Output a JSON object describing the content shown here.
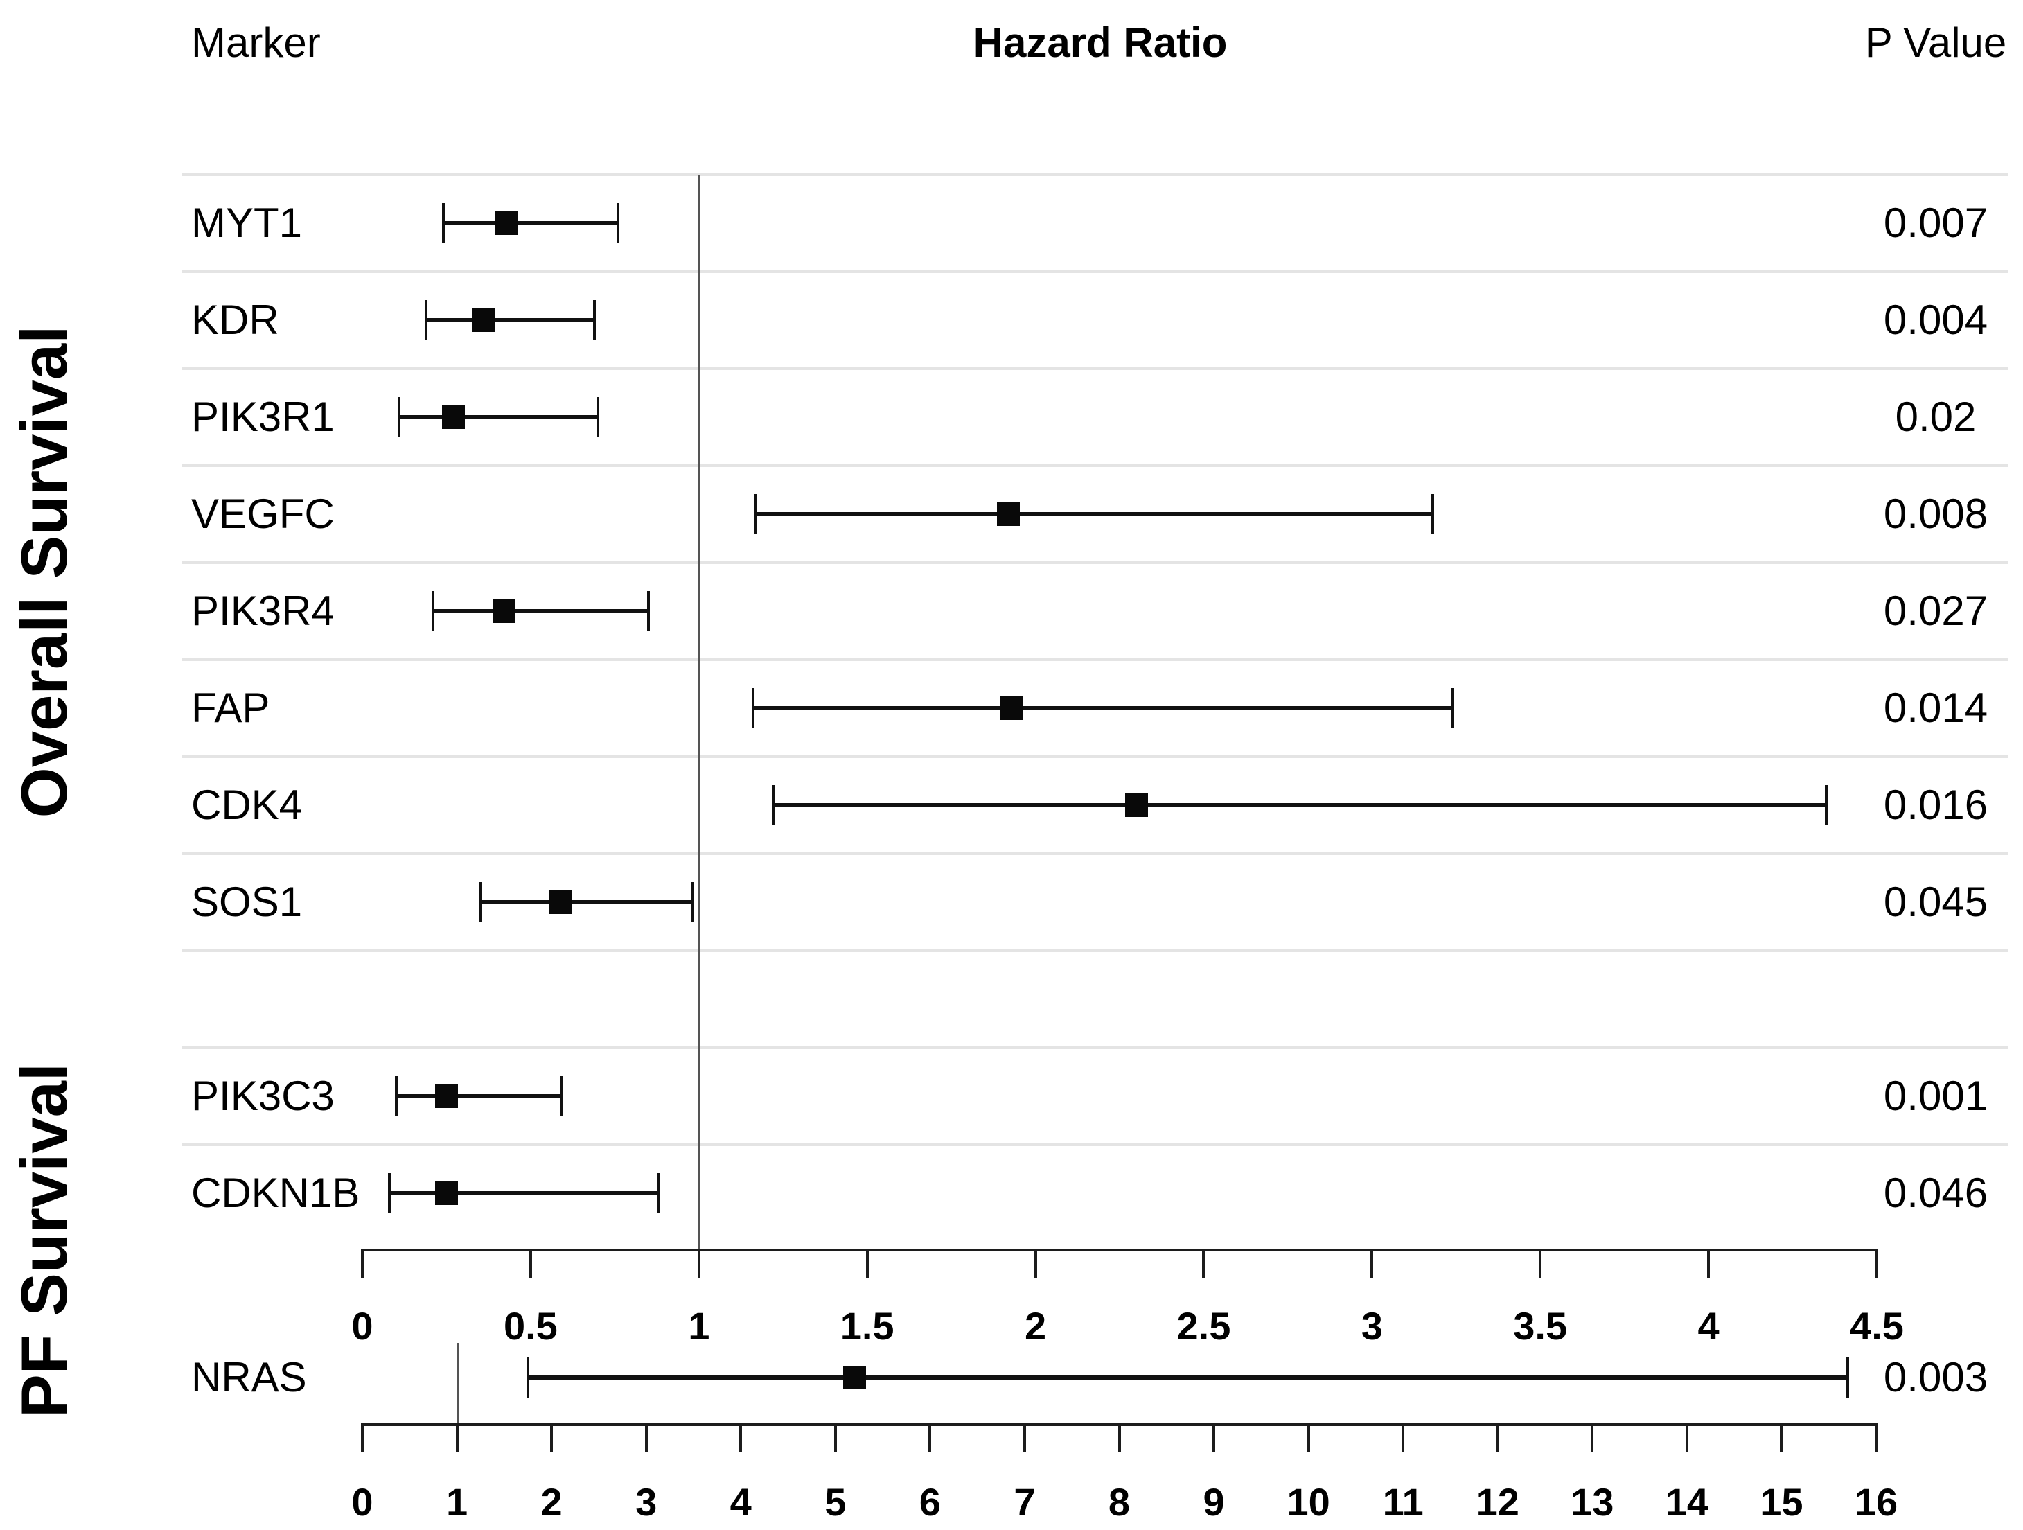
{
  "header": {
    "marker": "Marker",
    "hazard_ratio": "Hazard Ratio",
    "p_value": "P Value"
  },
  "colors": {
    "background": "#ffffff",
    "text": "#000000",
    "separator": "#e4e4e4",
    "axis": "#1c1c1c",
    "reference_line": "#545454",
    "error_bar": "#111111",
    "point_marker": "#090909"
  },
  "chart_data": {
    "type": "forest",
    "title": "Hazard Ratio",
    "legend": "none",
    "grid": "row separators only",
    "reference_line_value": 1,
    "groups": [
      {
        "label": "Overall Survival",
        "markers": [
          "MYT1",
          "KDR",
          "PIK3R1",
          "VEGFC",
          "PIK3R4",
          "FAP",
          "CDK4",
          "SOS1"
        ]
      },
      {
        "label": "PF Survival",
        "markers": [
          "PIK3C3",
          "CDKN1B",
          "NRAS"
        ]
      }
    ],
    "upper_axis": {
      "range": [
        0,
        4.5
      ],
      "ticks": [
        0,
        0.5,
        1,
        1.5,
        2,
        2.5,
        3,
        3.5,
        4,
        4.5
      ],
      "applies_to": "all rows except NRAS"
    },
    "lower_axis": {
      "range": [
        0,
        16
      ],
      "ticks": [
        0,
        1,
        2,
        3,
        4,
        5,
        6,
        7,
        8,
        9,
        10,
        11,
        12,
        13,
        14,
        15,
        16
      ],
      "applies_to": "NRAS"
    },
    "rows": [
      {
        "marker": "MYT1",
        "group": "Overall Survival",
        "axis": "upper",
        "hr": 0.43,
        "ci": [
          0.24,
          0.76
        ],
        "p_value": "0.007"
      },
      {
        "marker": "KDR",
        "group": "Overall Survival",
        "axis": "upper",
        "hr": 0.36,
        "ci": [
          0.19,
          0.69
        ],
        "p_value": "0.004"
      },
      {
        "marker": "PIK3R1",
        "group": "Overall Survival",
        "axis": "upper",
        "hr": 0.27,
        "ci": [
          0.11,
          0.7
        ],
        "p_value": "0.02"
      },
      {
        "marker": "VEGFC",
        "group": "Overall Survival",
        "axis": "upper",
        "hr": 1.92,
        "ci": [
          1.17,
          3.18
        ],
        "p_value": "0.008"
      },
      {
        "marker": "PIK3R4",
        "group": "Overall Survival",
        "axis": "upper",
        "hr": 0.42,
        "ci": [
          0.21,
          0.85
        ],
        "p_value": "0.027"
      },
      {
        "marker": "FAP",
        "group": "Overall Survival",
        "axis": "upper",
        "hr": 1.93,
        "ci": [
          1.16,
          3.24
        ],
        "p_value": "0.014"
      },
      {
        "marker": "CDK4",
        "group": "Overall Survival",
        "axis": "upper",
        "hr": 2.3,
        "ci": [
          1.22,
          4.35
        ],
        "p_value": "0.016"
      },
      {
        "marker": "SOS1",
        "group": "Overall Survival",
        "axis": "upper",
        "hr": 0.59,
        "ci": [
          0.35,
          0.98
        ],
        "p_value": "0.045"
      },
      {
        "marker": "PIK3C3",
        "group": "PF Survival",
        "axis": "upper",
        "hr": 0.25,
        "ci": [
          0.1,
          0.59
        ],
        "p_value": "0.001"
      },
      {
        "marker": "CDKN1B",
        "group": "PF Survival",
        "axis": "upper",
        "hr": 0.25,
        "ci": [
          0.08,
          0.88
        ],
        "p_value": "0.046"
      },
      {
        "marker": "NRAS",
        "group": "PF Survival",
        "axis": "lower",
        "hr": 5.2,
        "ci": [
          1.75,
          15.7
        ],
        "p_value": "0.003"
      }
    ]
  }
}
